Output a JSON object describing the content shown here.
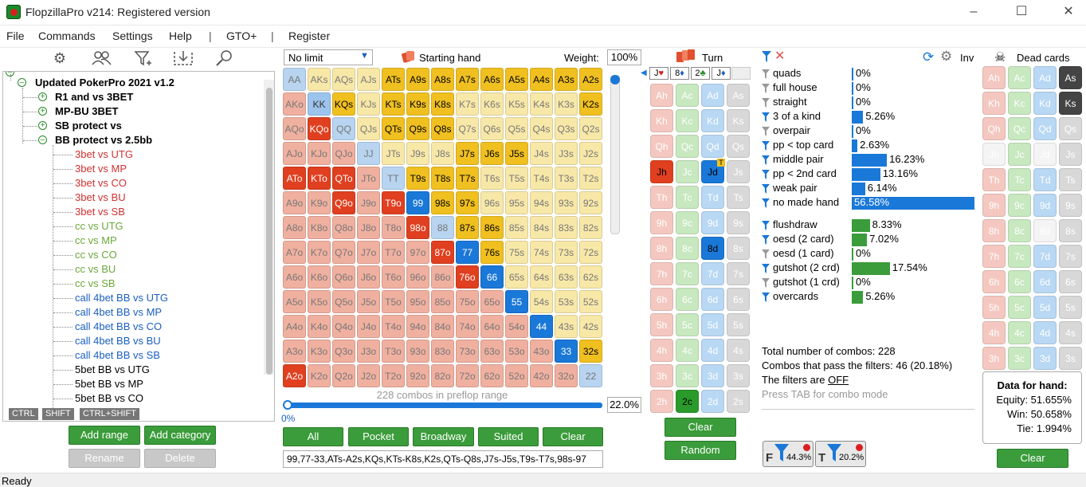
{
  "window": {
    "title": "FlopzillaPro v214: Registered version",
    "status": "Ready"
  },
  "menu": [
    "File",
    "Commands",
    "Settings",
    "Help",
    "|",
    "GTO+",
    "|",
    "Register"
  ],
  "toolbar_icons": [
    "gear-icon",
    "users-icon",
    "filter-add-icon",
    "import-icon",
    "search-icon"
  ],
  "tree": {
    "root": "Updated PokerPro 2021 v1.2",
    "folders": [
      "R1 and vs 3BET",
      "MP-BU 3BET",
      "SB protect vs",
      "BB protect vs 2.5bb"
    ],
    "items": [
      {
        "label": "3bet vs UTG",
        "color": "red"
      },
      {
        "label": "3bet vs MP",
        "color": "red"
      },
      {
        "label": "3bet vs CO",
        "color": "red"
      },
      {
        "label": "3bet vs BU",
        "color": "red"
      },
      {
        "label": "3bet vs SB",
        "color": "red"
      },
      {
        "label": "cc vs UTG",
        "color": "grn"
      },
      {
        "label": "cc vs MP",
        "color": "grn"
      },
      {
        "label": "cc vs CO",
        "color": "grn"
      },
      {
        "label": "cc vs BU",
        "color": "grn"
      },
      {
        "label": "cc vs SB",
        "color": "grn"
      },
      {
        "label": "call 4bet BB vs UTG",
        "color": "blu"
      },
      {
        "label": "call 4bet BB vs MP",
        "color": "blu"
      },
      {
        "label": "call 4bet BB vs CO",
        "color": "blu"
      },
      {
        "label": "call 4bet BB vs BU",
        "color": "blu"
      },
      {
        "label": "call 4bet BB vs SB",
        "color": "blu"
      },
      {
        "label": "5bet BB vs UTG",
        "color": ""
      },
      {
        "label": "5bet BB vs MP",
        "color": ""
      },
      {
        "label": "5bet BB vs CO",
        "color": ""
      }
    ],
    "keys": [
      "CTRL",
      "SHIFT",
      "CTRL+SHIFT"
    ],
    "buttons": {
      "add_range": "Add range",
      "add_category": "Add category",
      "rename": "Rename",
      "delete": "Delete"
    }
  },
  "range": {
    "mode": "No limit",
    "header": "Starting hand",
    "weight_label": "Weight:",
    "weight": "100%",
    "combos_text": "228 combos in preflop range",
    "slider_left": "0%",
    "slider_right": "22.0%",
    "slider_fraction": 0.22,
    "buttons": [
      "All",
      "Pocket",
      "Broadway",
      "Suited",
      "Clear"
    ],
    "range_text": "99,77-33,ATs-A2s,KQs,KTs-K8s,K2s,QTs-Q8s,J7s-J5s,T9s-T7s,98s-97"
  },
  "colors": {
    "blue": "#1a78d8",
    "yellow": "#f0c020",
    "red": "#e04020",
    "lightblue": "#b8d4f0",
    "lightyellow": "#f8e8a8",
    "lightred": "#f0b0a0",
    "green": "#3a9c3a"
  },
  "grid": [
    [
      "AA",
      "AKs",
      "AQs",
      "AJs",
      "ATs",
      "A9s",
      "A8s",
      "A7s",
      "A6s",
      "A5s",
      "A4s",
      "A3s",
      "A2s"
    ],
    [
      "AKo",
      "KK",
      "KQs",
      "KJs",
      "KTs",
      "K9s",
      "K8s",
      "K7s",
      "K6s",
      "K5s",
      "K4s",
      "K3s",
      "K2s"
    ],
    [
      "AQo",
      "KQo",
      "QQ",
      "QJs",
      "QTs",
      "Q9s",
      "Q8s",
      "Q7s",
      "Q6s",
      "Q5s",
      "Q4s",
      "Q3s",
      "Q2s"
    ],
    [
      "AJo",
      "KJo",
      "QJo",
      "JJ",
      "JTs",
      "J9s",
      "J8s",
      "J7s",
      "J6s",
      "J5s",
      "J4s",
      "J3s",
      "J2s"
    ],
    [
      "ATo",
      "KTo",
      "QTo",
      "JTo",
      "TT",
      "T9s",
      "T8s",
      "T7s",
      "T6s",
      "T5s",
      "T4s",
      "T3s",
      "T2s"
    ],
    [
      "A9o",
      "K9o",
      "Q9o",
      "J9o",
      "T9o",
      "99",
      "98s",
      "97s",
      "96s",
      "95s",
      "94s",
      "93s",
      "92s"
    ],
    [
      "A8o",
      "K8o",
      "Q8o",
      "J8o",
      "T8o",
      "98o",
      "88",
      "87s",
      "86s",
      "85s",
      "84s",
      "83s",
      "82s"
    ],
    [
      "A7o",
      "K7o",
      "Q7o",
      "J7o",
      "T7o",
      "97o",
      "87o",
      "77",
      "76s",
      "75s",
      "74s",
      "73s",
      "72s"
    ],
    [
      "A6o",
      "K6o",
      "Q6o",
      "J6o",
      "T6o",
      "96o",
      "86o",
      "76o",
      "66",
      "65s",
      "64s",
      "63s",
      "62s"
    ],
    [
      "A5o",
      "K5o",
      "Q5o",
      "J5o",
      "T5o",
      "95o",
      "85o",
      "75o",
      "65o",
      "55",
      "54s",
      "53s",
      "52s"
    ],
    [
      "A4o",
      "K4o",
      "Q4o",
      "J4o",
      "T4o",
      "94o",
      "84o",
      "74o",
      "64o",
      "54o",
      "44",
      "43s",
      "42s"
    ],
    [
      "A3o",
      "K3o",
      "Q3o",
      "J3o",
      "T3o",
      "93o",
      "83o",
      "73o",
      "63o",
      "53o",
      "43o",
      "33",
      "32s"
    ],
    [
      "A2o",
      "K2o",
      "Q2o",
      "J2o",
      "T2o",
      "92o",
      "82o",
      "72o",
      "62o",
      "52o",
      "42o",
      "32o",
      "22"
    ]
  ],
  "grid_selected": [
    "ATs",
    "A9s",
    "A8s",
    "A7s",
    "A6s",
    "A5s",
    "A4s",
    "A3s",
    "A2s",
    "KQs",
    "KTs",
    "K9s",
    "K8s",
    "K2s",
    "QTs",
    "Q9s",
    "Q8s",
    "J7s",
    "J6s",
    "J5s",
    "T9s",
    "T8s",
    "T7s",
    "98s",
    "97s",
    "87s",
    "86s",
    "76s",
    "32s",
    "99",
    "77",
    "66",
    "55",
    "44",
    "33",
    "KQo",
    "ATo",
    "KTo",
    "QTo",
    "Q9o",
    "T9o",
    "98o",
    "87o",
    "76o",
    "A2o"
  ],
  "board": {
    "header": "Turn",
    "cards": [
      {
        "r": "J",
        "s": "♥",
        "c": "#d02020"
      },
      {
        "r": "8",
        "s": "♦",
        "c": "#1a5fc0"
      },
      {
        "r": "2",
        "s": "♣",
        "c": "#2a8a2a"
      },
      {
        "r": "J",
        "s": "♦",
        "c": "#1a5fc0"
      }
    ],
    "selected": [
      "Jh",
      "Jd",
      "8d",
      "2c"
    ],
    "clear": "Clear",
    "random": "Random",
    "turn_marker": "T"
  },
  "stats": {
    "made": [
      {
        "label": "quads",
        "pct": "0%",
        "v": 0
      },
      {
        "label": "full house",
        "pct": "0%",
        "v": 0
      },
      {
        "label": "straight",
        "pct": "0%",
        "v": 0
      },
      {
        "label": "3 of a kind",
        "pct": "5.26%",
        "v": 5.26
      },
      {
        "label": "overpair",
        "pct": "0%",
        "v": 0
      },
      {
        "label": "pp < top card",
        "pct": "2.63%",
        "v": 2.63
      },
      {
        "label": "middle pair",
        "pct": "16.23%",
        "v": 16.23
      },
      {
        "label": "pp < 2nd card",
        "pct": "13.16%",
        "v": 13.16
      },
      {
        "label": "weak pair",
        "pct": "6.14%",
        "v": 6.14
      },
      {
        "label": "no made hand",
        "pct": "56.58%",
        "v": 56.58
      }
    ],
    "draws": [
      {
        "label": "flushdraw",
        "pct": "8.33%",
        "v": 8.33
      },
      {
        "label": "oesd (2 card)",
        "pct": "7.02%",
        "v": 7.02
      },
      {
        "label": "oesd (1 card)",
        "pct": "0%",
        "v": 0
      },
      {
        "label": "gutshot (2 crd)",
        "pct": "17.54%",
        "v": 17.54
      },
      {
        "label": "gutshot (1 crd)",
        "pct": "0%",
        "v": 0
      },
      {
        "label": "overcards",
        "pct": "5.26%",
        "v": 5.26
      }
    ],
    "totals": [
      "Total number of combos: 228",
      "Combos that pass the filters: 46 (20.18%)",
      "The filters are ",
      "OFF",
      "Press TAB for combo mode"
    ],
    "f_pct": "44.3%",
    "t_pct": "20.2%",
    "f_label": "F",
    "t_label": "T",
    "inv": "Inv"
  },
  "dead": {
    "header": "Dead cards",
    "selected": [
      "As",
      "Ks"
    ],
    "info_title": "Data for hand:",
    "equity": "Equity: 51.655%",
    "win": "Win: 50.658%",
    "tie": "Tie: 1.994%",
    "clear": "Clear"
  }
}
